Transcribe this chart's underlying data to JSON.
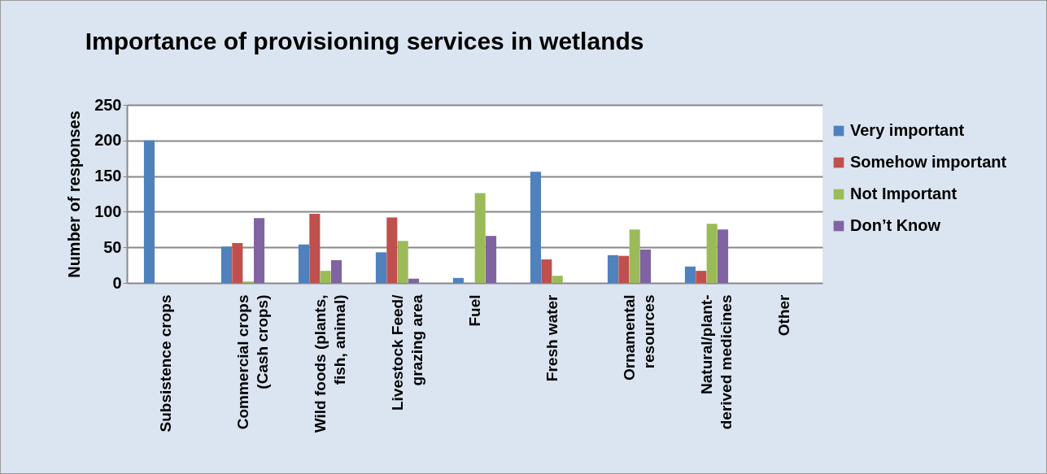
{
  "chart_data": {
    "type": "bar",
    "title": "Importance of provisioning services in wetlands",
    "ylabel": "Number of responses",
    "categories": [
      "Subsistence crops",
      "Commercial crops\n(Cash crops)",
      "Wild foods (plants,\nfish, animal)",
      "Livestock Feed/\ngrazing area",
      "Fuel",
      "Fresh water",
      "Ornamental\nresources",
      "Natural/plant-\nderived medicines",
      "Other"
    ],
    "series": [
      {
        "name": "Very important",
        "color": "#4f81bd",
        "values": [
          200,
          51,
          54,
          43,
          7,
          156,
          39,
          23,
          0
        ]
      },
      {
        "name": "Somehow important",
        "color": "#c0504d",
        "values": [
          0,
          56,
          97,
          92,
          0,
          33,
          38,
          17,
          0
        ]
      },
      {
        "name": "Not Important",
        "color": "#9bbb59",
        "values": [
          0,
          2,
          17,
          59,
          126,
          10,
          75,
          83,
          0
        ]
      },
      {
        "name": "Don’t Know",
        "color": "#8064a2",
        "values": [
          0,
          91,
          32,
          6,
          66,
          0,
          47,
          75,
          0
        ]
      }
    ],
    "ylim": [
      0,
      250
    ],
    "yticks": [
      0,
      50,
      100,
      150,
      200,
      250
    ],
    "grid": "y",
    "legend": "right"
  }
}
